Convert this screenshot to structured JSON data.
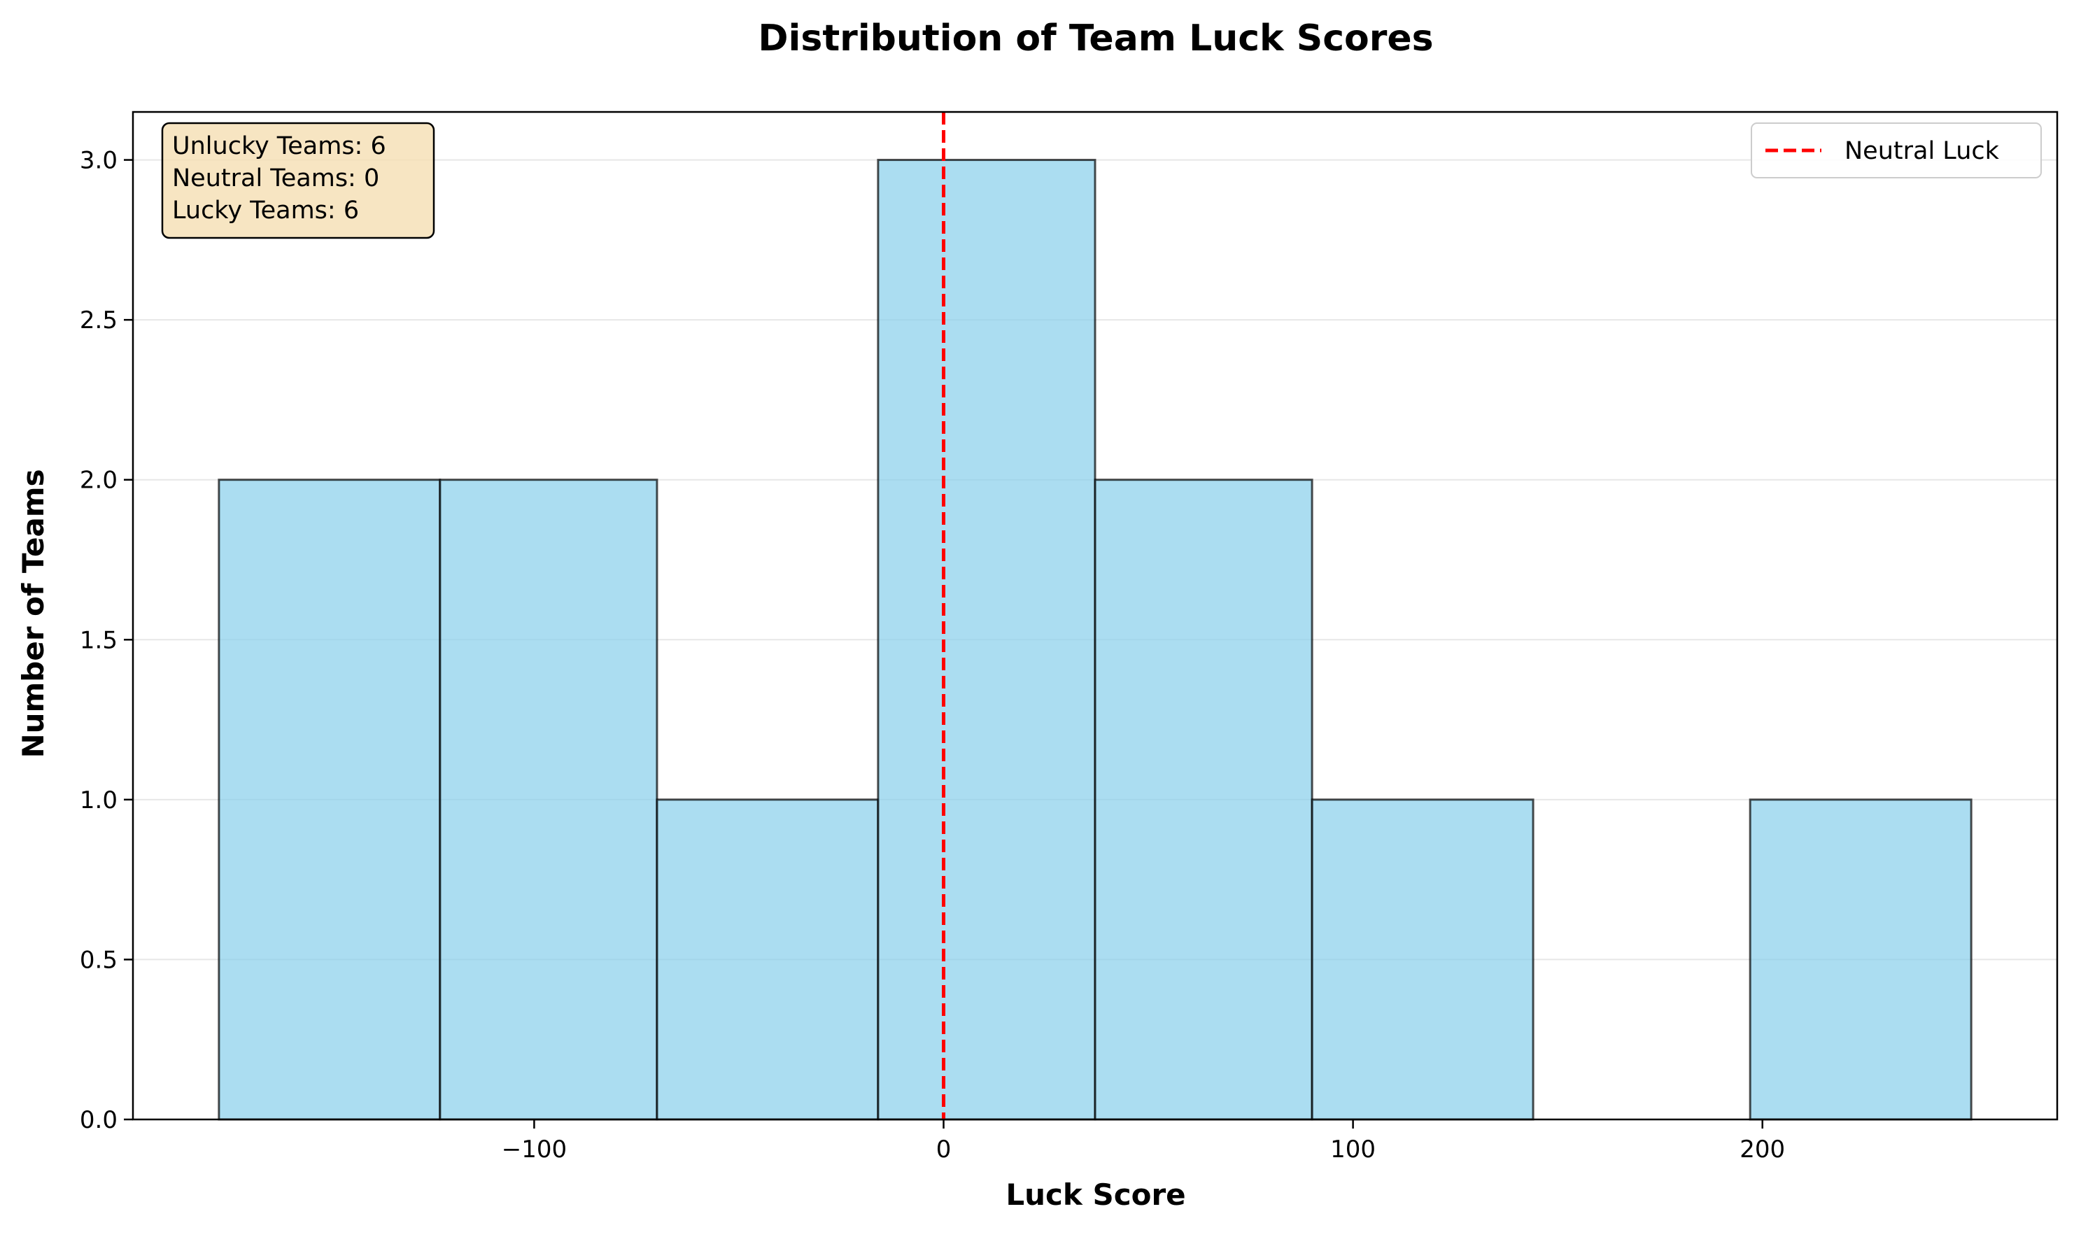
{
  "chart_data": {
    "type": "bar",
    "title": "Distribution of Team Luck Scores",
    "xlabel": "Luck Score",
    "ylabel": "Number of Teams",
    "bins": [
      {
        "start": -177,
        "end": -123,
        "count": 2
      },
      {
        "start": -123,
        "end": -70,
        "count": 2
      },
      {
        "start": -70,
        "end": -16,
        "count": 1
      },
      {
        "start": -16,
        "end": 37,
        "count": 3
      },
      {
        "start": 37,
        "end": 90,
        "count": 2
      },
      {
        "start": 90,
        "end": 144,
        "count": 1
      },
      {
        "start": 144,
        "end": 197,
        "count": 0
      },
      {
        "start": 197,
        "end": 251,
        "count": 1
      }
    ],
    "xlim": [
      -198,
      272
    ],
    "ylim": [
      0,
      3.15
    ],
    "x_ticks": [
      {
        "value": -100,
        "label": "−100"
      },
      {
        "value": 0,
        "label": "0"
      },
      {
        "value": 100,
        "label": "100"
      },
      {
        "value": 200,
        "label": "200"
      }
    ],
    "y_ticks": [
      {
        "value": 0,
        "label": "0.0"
      },
      {
        "value": 0.5,
        "label": "0.5"
      },
      {
        "value": 1,
        "label": "1.0"
      },
      {
        "value": 1.5,
        "label": "1.5"
      },
      {
        "value": 2,
        "label": "2.0"
      },
      {
        "value": 2.5,
        "label": "2.5"
      },
      {
        "value": 3,
        "label": "3.0"
      }
    ],
    "reference_line": {
      "x": 0,
      "label": "Neutral Luck",
      "color": "#ff0000",
      "style": "dashed"
    },
    "legend": {
      "placement": "top-right",
      "entries": [
        "Neutral Luck"
      ]
    },
    "annotation": {
      "placement": "top-left",
      "lines": [
        "Unlucky Teams: 6",
        "Neutral Teams: 0",
        "Lucky Teams: 6"
      ]
    },
    "grid": {
      "y": true,
      "x": false
    },
    "colors": {
      "bar_fill": "#87ceeb",
      "bar_edge": "#000000",
      "annotation_box": "#f5deb3"
    }
  }
}
